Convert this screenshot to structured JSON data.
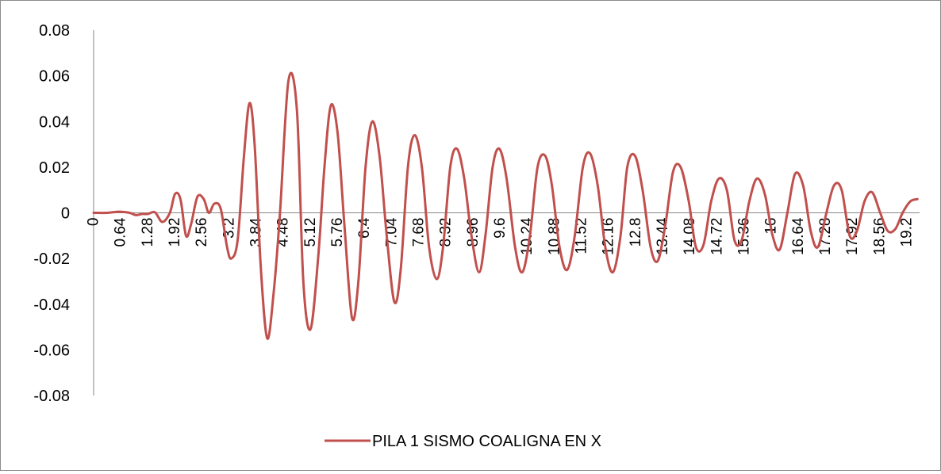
{
  "chart_data": {
    "type": "line",
    "title": "",
    "xlabel": "",
    "ylabel": "",
    "ylim": [
      -0.08,
      0.08
    ],
    "yticks": [
      "0.08",
      "0.06",
      "0.04",
      "0.02",
      "0",
      "-0.02",
      "-0.04",
      "-0.06",
      "-0.08"
    ],
    "xtick_labels": [
      "0",
      "0.64",
      "1.28",
      "1.92",
      "2.56",
      "3.2",
      "3.84",
      "4.48",
      "5.12",
      "5.76",
      "6.4",
      "7.04",
      "7.68",
      "8.32",
      "8.96",
      "9.6",
      "10.24",
      "10.88",
      "11.52",
      "12.16",
      "12.8",
      "13.44",
      "14.08",
      "14.72",
      "15.36",
      "16",
      "16.64",
      "17.28",
      "17.92",
      "18.56",
      "19.2"
    ],
    "xlim": [
      0,
      19.5
    ],
    "grid": false,
    "legend_position": "bottom",
    "series": [
      {
        "name": "PILA 1 SISMO COALIGNA EN X",
        "color": "#c0504d",
        "x": [
          0,
          0.32,
          0.6,
          0.85,
          1.0,
          1.15,
          1.28,
          1.45,
          1.62,
          1.8,
          1.92,
          2.05,
          2.18,
          2.3,
          2.45,
          2.6,
          2.72,
          2.85,
          3.0,
          3.15,
          3.25,
          3.4,
          3.55,
          3.68,
          3.8,
          3.95,
          4.1,
          4.25,
          4.4,
          4.6,
          4.8,
          4.95,
          5.12,
          5.3,
          5.45,
          5.6,
          5.76,
          5.92,
          6.1,
          6.25,
          6.42,
          6.58,
          6.75,
          6.92,
          7.1,
          7.25,
          7.42,
          7.58,
          7.75,
          7.92,
          8.1,
          8.25,
          8.42,
          8.58,
          8.75,
          8.92,
          9.1,
          9.25,
          9.42,
          9.58,
          9.75,
          9.95,
          10.12,
          10.3,
          10.48,
          10.66,
          10.82,
          11.0,
          11.18,
          11.36,
          11.55,
          11.72,
          11.9,
          12.08,
          12.26,
          12.44,
          12.6,
          12.78,
          12.96,
          13.15,
          13.32,
          13.5,
          13.68,
          13.86,
          14.05,
          14.22,
          14.4,
          14.58,
          14.76,
          14.95,
          15.13,
          15.3,
          15.48,
          15.66,
          15.85,
          16.03,
          16.2,
          16.38,
          16.56,
          16.75,
          16.93,
          17.1,
          17.3,
          17.48,
          17.66,
          17.85,
          18.02,
          18.2,
          18.38,
          18.57,
          18.75,
          18.93,
          19.1,
          19.28,
          19.45
        ],
        "values": [
          0,
          0,
          0.0005,
          0,
          -0.001,
          -0.0005,
          -0.0005,
          0.0002,
          -0.004,
          0,
          0.0082,
          0.006,
          -0.01,
          -0.005,
          0.007,
          0.006,
          0,
          0.004,
          0.0018,
          -0.015,
          -0.02,
          -0.012,
          0.025,
          0.048,
          0.03,
          -0.025,
          -0.055,
          -0.035,
          0,
          0.058,
          0.045,
          -0.03,
          -0.051,
          -0.02,
          0.02,
          0.047,
          0.035,
          -0.005,
          -0.046,
          -0.03,
          0.02,
          0.04,
          0.025,
          -0.01,
          -0.039,
          -0.025,
          0.02,
          0.034,
          0.02,
          -0.015,
          -0.029,
          -0.015,
          0.02,
          0.028,
          0.015,
          -0.01,
          -0.026,
          -0.01,
          0.02,
          0.028,
          0.015,
          -0.015,
          -0.026,
          -0.01,
          0.02,
          0.025,
          0.012,
          -0.015,
          -0.025,
          -0.01,
          0.02,
          0.026,
          0.012,
          -0.015,
          -0.026,
          -0.01,
          0.02,
          0.025,
          0.01,
          -0.015,
          -0.021,
          -0.005,
          0.018,
          0.02,
          0.005,
          -0.015,
          -0.014,
          0.005,
          0.015,
          0.01,
          -0.012,
          -0.012,
          0.005,
          0.015,
          0.008,
          -0.01,
          -0.016,
          0,
          0.017,
          0.012,
          -0.008,
          -0.015,
          0,
          0.012,
          0.01,
          -0.01,
          -0.008,
          0.005,
          0.009,
          0,
          -0.008,
          -0.007,
          0,
          0.005,
          0.006
        ]
      }
    ]
  }
}
